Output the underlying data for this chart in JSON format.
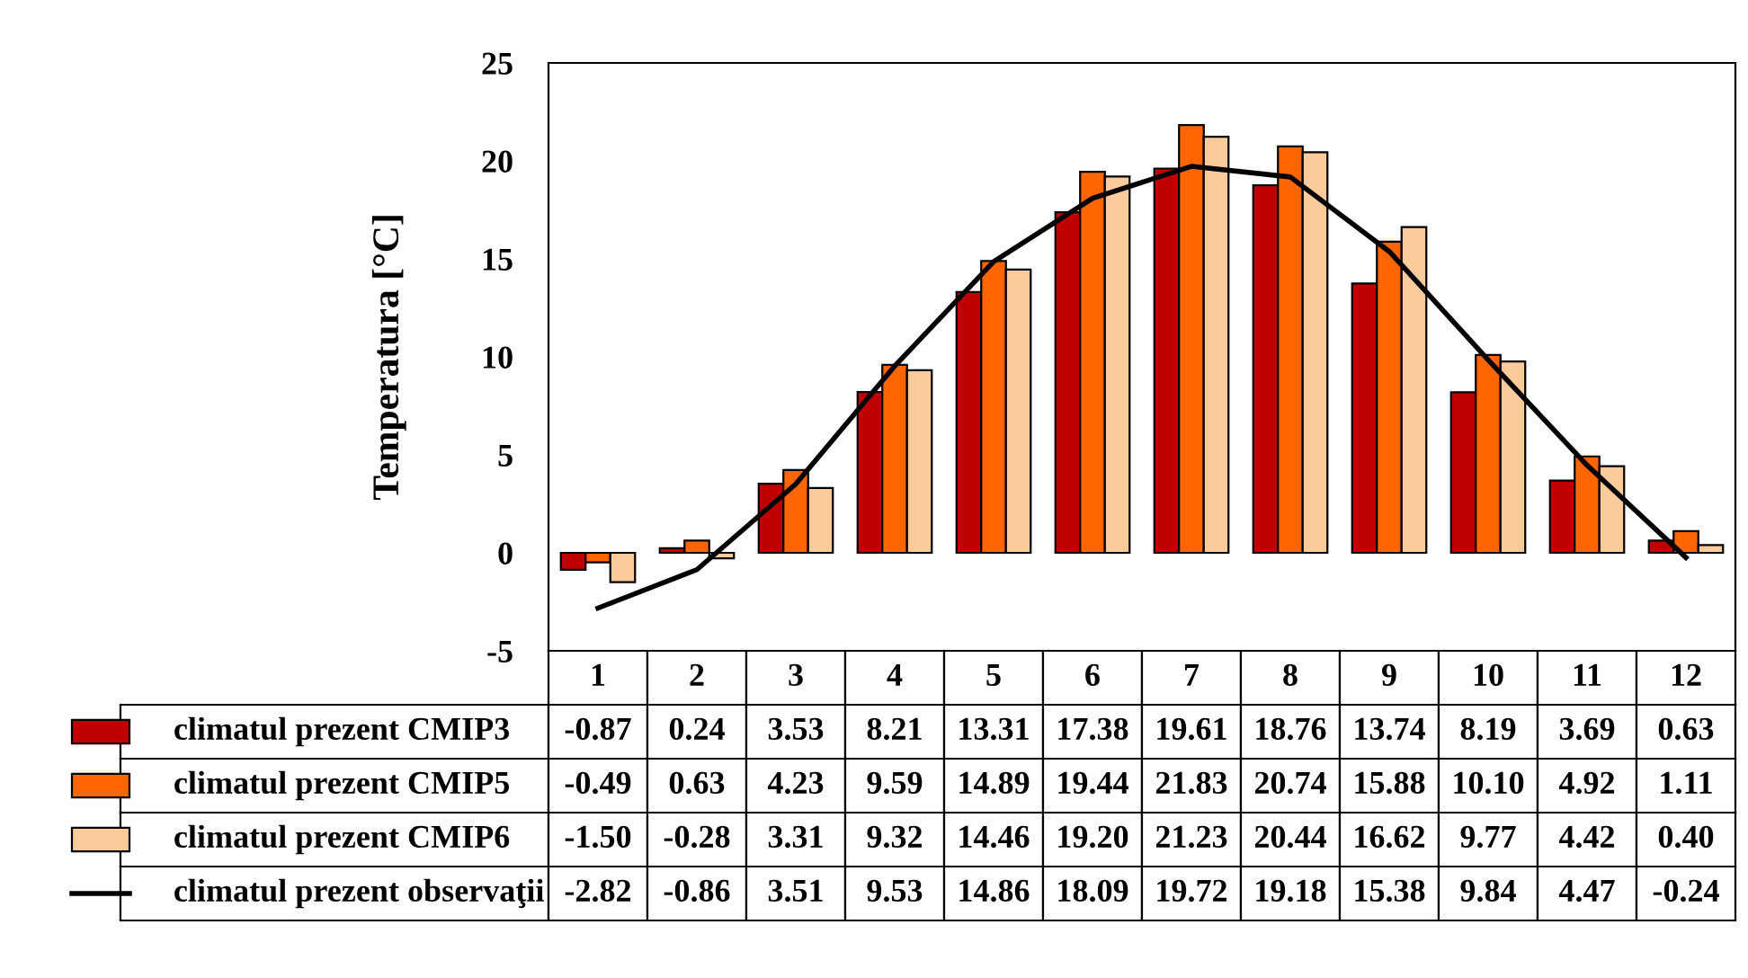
{
  "chart_data": {
    "type": "bar",
    "ylabel": "Temperatura [°C]",
    "categories": [
      "1",
      "2",
      "3",
      "4",
      "5",
      "6",
      "7",
      "8",
      "9",
      "10",
      "11",
      "12"
    ],
    "series": [
      {
        "name": "climatul prezent CMIP3",
        "color": "#c00000",
        "values": [
          -0.87,
          0.24,
          3.53,
          8.21,
          13.31,
          17.38,
          19.61,
          18.76,
          13.74,
          8.19,
          3.69,
          0.63
        ],
        "value_labels": [
          "-0.87",
          "0.24",
          "3.53",
          "8.21",
          "13.31",
          "17.38",
          "19.61",
          "18.76",
          "13.74",
          "8.19",
          "3.69",
          "0.63"
        ]
      },
      {
        "name": "climatul prezent CMIP5",
        "color": "#ff6600",
        "values": [
          -0.49,
          0.63,
          4.23,
          9.59,
          14.89,
          19.44,
          21.83,
          20.74,
          15.88,
          10.1,
          4.92,
          1.11
        ],
        "value_labels": [
          "-0.49",
          "0.63",
          "4.23",
          "9.59",
          "14.89",
          "19.44",
          "21.83",
          "20.74",
          "15.88",
          "10.10",
          "4.92",
          "1.11"
        ]
      },
      {
        "name": "climatul prezent CMIP6",
        "color": "#fccb9c",
        "values": [
          -1.5,
          -0.28,
          3.31,
          9.32,
          14.46,
          19.2,
          21.23,
          20.44,
          16.62,
          9.77,
          4.42,
          0.4
        ],
        "value_labels": [
          "-1.50",
          "-0.28",
          "3.31",
          "9.32",
          "14.46",
          "19.20",
          "21.23",
          "20.44",
          "16.62",
          "9.77",
          "4.42",
          "0.40"
        ]
      },
      {
        "name": "climatul prezent observaţii",
        "type": "line",
        "color": "#000000",
        "values": [
          -2.82,
          -0.86,
          3.51,
          9.53,
          14.86,
          18.09,
          19.72,
          19.18,
          15.38,
          9.84,
          4.47,
          -0.24
        ],
        "value_labels": [
          "-2.82",
          "-0.86",
          "3.51",
          "9.53",
          "14.86",
          "18.09",
          "19.72",
          "19.18",
          "15.38",
          "9.84",
          "4.47",
          "-0.24"
        ]
      }
    ],
    "ylim": [
      -5,
      25
    ],
    "yticks": [
      -5,
      0,
      5,
      10,
      15,
      20,
      25
    ],
    "grid": false,
    "legend": "bottom",
    "marker": "none",
    "line_style": "solid"
  }
}
